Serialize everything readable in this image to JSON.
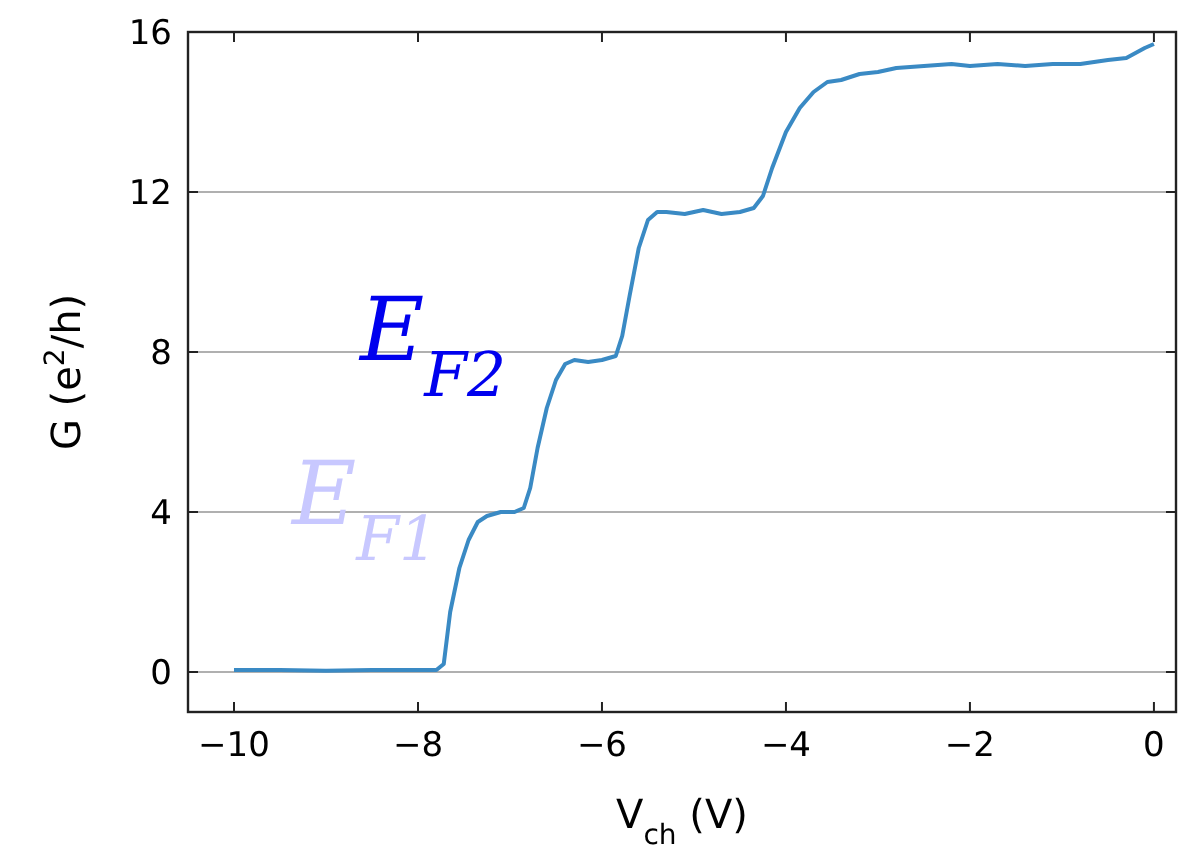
{
  "chart_data": {
    "type": "line",
    "xlabel": "V$_{ch}$ (V)",
    "ylabel": "G (e$^{2}$/h)",
    "xlim": [
      -10.5,
      0.24
    ],
    "ylim": [
      -1,
      16
    ],
    "xticks": [
      {
        "value": -10,
        "label": "−10"
      },
      {
        "value": -8,
        "label": "−8"
      },
      {
        "value": -6,
        "label": "−6"
      },
      {
        "value": -4,
        "label": "−4"
      },
      {
        "value": -2,
        "label": "−2"
      },
      0
    ],
    "yticks": [
      0,
      4,
      8,
      12,
      16
    ],
    "grid": "y",
    "series": [
      {
        "color": "#3a8ac4",
        "x": [
          -10,
          -9.5,
          -9,
          -8.5,
          -8,
          -7.8,
          -7.72,
          -7.65,
          -7.55,
          -7.45,
          -7.35,
          -7.25,
          -7.1,
          -6.95,
          -6.85,
          -6.78,
          -6.7,
          -6.6,
          -6.5,
          -6.4,
          -6.3,
          -6.15,
          -6.0,
          -5.85,
          -5.78,
          -5.7,
          -5.6,
          -5.5,
          -5.4,
          -5.3,
          -5.1,
          -4.9,
          -4.7,
          -4.5,
          -4.35,
          -4.25,
          -4.15,
          -4.0,
          -3.85,
          -3.7,
          -3.55,
          -3.4,
          -3.2,
          -3.0,
          -2.8,
          -2.5,
          -2.2,
          -2.0,
          -1.7,
          -1.4,
          -1.1,
          -0.8,
          -0.5,
          -0.3,
          -0.1,
          0
        ],
        "values": [
          0.05,
          0.05,
          0.03,
          0.05,
          0.05,
          0.05,
          0.2,
          1.5,
          2.6,
          3.3,
          3.75,
          3.9,
          4.0,
          4.0,
          4.1,
          4.6,
          5.6,
          6.6,
          7.3,
          7.7,
          7.8,
          7.75,
          7.8,
          7.9,
          8.4,
          9.4,
          10.6,
          11.3,
          11.5,
          11.5,
          11.45,
          11.55,
          11.45,
          11.5,
          11.6,
          11.9,
          12.6,
          13.5,
          14.1,
          14.5,
          14.75,
          14.8,
          14.95,
          15.0,
          15.1,
          15.15,
          15.2,
          15.15,
          15.2,
          15.15,
          15.2,
          15.2,
          15.3,
          15.35,
          15.6,
          15.7
        ]
      }
    ],
    "annotations": [
      "E$_{F1}$",
      "E$_{F2}$"
    ]
  }
}
